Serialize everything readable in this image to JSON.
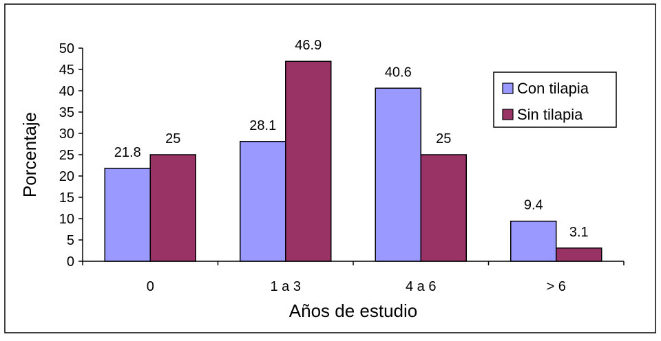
{
  "chart_data": {
    "type": "bar",
    "title": "",
    "xlabel": "Años de estudio",
    "ylabel": "Porcentaje",
    "categories": [
      "0",
      "1 a 3",
      "4 a 6",
      "> 6"
    ],
    "series": [
      {
        "name": "Con tilapia",
        "values": [
          21.8,
          28.1,
          40.6,
          9.4
        ],
        "labels": [
          "21.8",
          "28.1",
          "40.6",
          "9.4"
        ],
        "color": "#9999ff"
      },
      {
        "name": "Sin tilapia",
        "values": [
          25,
          46.9,
          25,
          3.1
        ],
        "labels": [
          "25",
          "46.9",
          "25",
          "3.1"
        ],
        "color": "#993366"
      }
    ],
    "ylim": [
      0,
      50
    ],
    "yticks": [
      "0",
      "5",
      "10",
      "15",
      "20",
      "25",
      "30",
      "35",
      "40",
      "45",
      "50"
    ],
    "grid": false,
    "legend": "right"
  }
}
